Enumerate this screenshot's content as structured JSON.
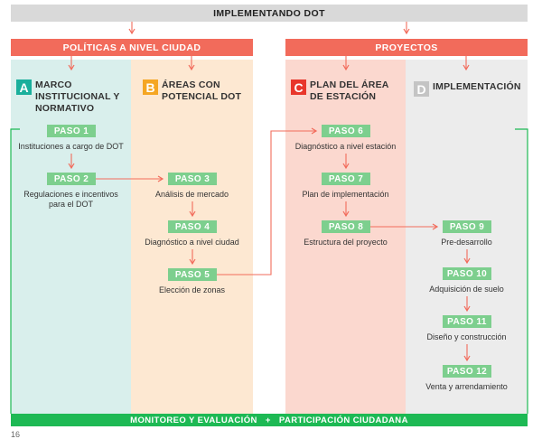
{
  "header": {
    "title": "IMPLEMENTANDO DOT"
  },
  "sections": {
    "left": "POLÍTICAS A NIVEL CIUDAD",
    "right": "PROYECTOS"
  },
  "phases": [
    {
      "letter": "A",
      "title": "MARCO INSTITUCIONAL Y NORMATIVO",
      "color": "#1aaf9c"
    },
    {
      "letter": "B",
      "title": "ÁREAS CON POTENCIAL DOT",
      "color": "#f5a623"
    },
    {
      "letter": "C",
      "title": "PLAN DEL ÁREA DE ESTACIÓN",
      "color": "#e8362b"
    },
    {
      "letter": "D",
      "title": "IMPLEMENTACIÓN",
      "color": "#c4c4c4"
    }
  ],
  "steps": [
    {
      "label": "PASO 1",
      "desc": "Instituciones a cargo de DOT"
    },
    {
      "label": "PASO 2",
      "desc": "Regulaciones e incentivos para el DOT"
    },
    {
      "label": "PASO 3",
      "desc": "Análisis de mercado"
    },
    {
      "label": "PASO 4",
      "desc": "Diagnóstico a nivel ciudad"
    },
    {
      "label": "PASO 5",
      "desc": "Elección de zonas"
    },
    {
      "label": "PASO 6",
      "desc": "Diagnóstico a nivel estación"
    },
    {
      "label": "PASO 7",
      "desc": "Plan de implementación"
    },
    {
      "label": "PASO 8",
      "desc": "Estructura del proyecto"
    },
    {
      "label": "PASO 9",
      "desc": "Pre-desarrollo"
    },
    {
      "label": "PASO 10",
      "desc": "Adquisición de suelo"
    },
    {
      "label": "PASO 11",
      "desc": "Diseño y construcción"
    },
    {
      "label": "PASO 12",
      "desc": "Venta y arrendamiento"
    }
  ],
  "footer": {
    "text": "MONITOREO Y EVALUACIÓN   +   PARTICIPACIÓN CIUDADANA"
  },
  "page_number": "16"
}
